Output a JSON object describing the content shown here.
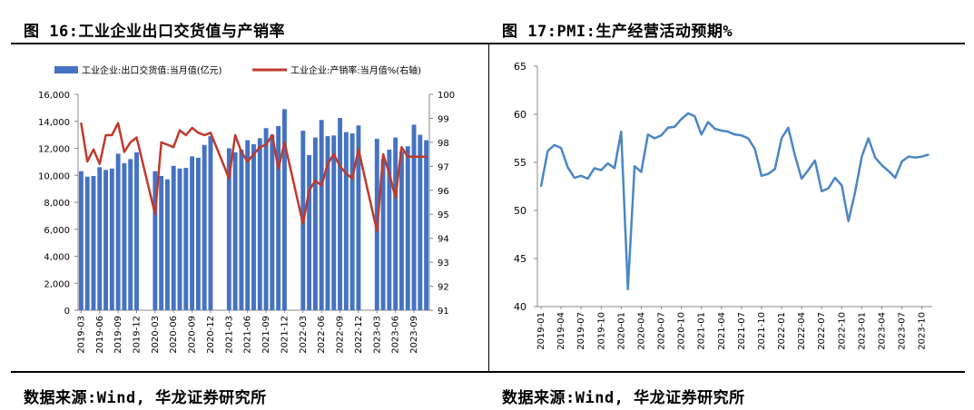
{
  "left_panel": {
    "title": "图 16:工业企业出口交货值与产销率",
    "source": "数据来源:Wind, 华龙证券研究所"
  },
  "right_panel": {
    "title": "图 17:PMI:生产经营活动预期%",
    "source": "数据来源:Wind, 华龙证券研究所"
  },
  "colors": {
    "bar": "#4472C4",
    "line_red": "#C0392B",
    "line_blue": "#4A86C5"
  },
  "chart_data": [
    {
      "type": "bar",
      "title": "工业企业出口交货值与产销率",
      "legend": [
        "工业企业:出口交货值:当月值(亿元)",
        "工业企业:产销率:当月值%(右轴)"
      ],
      "legend_position": "top",
      "x_tick_labels": [
        "2019-03",
        "2019-06",
        "2019-09",
        "2019-12",
        "2020-03",
        "2020-06",
        "2020-09",
        "2020-12",
        "2021-03",
        "2021-06",
        "2021-09",
        "2021-12",
        "2022-03",
        "2022-06",
        "2022-09",
        "2022-12",
        "2023-03",
        "2023-06",
        "2023-09"
      ],
      "y_left": {
        "ylim": [
          0,
          16000
        ],
        "ticks": [
          "0",
          "2,000",
          "4,000",
          "6,000",
          "8,000",
          "10,000",
          "12,000",
          "14,000",
          "16,000"
        ]
      },
      "y_right": {
        "ylim": [
          91,
          100
        ],
        "ticks": [
          "91",
          "92",
          "93",
          "94",
          "95",
          "96",
          "97",
          "98",
          "99",
          "100"
        ]
      },
      "categories": [
        "2019-03",
        "2019-04",
        "2019-05",
        "2019-06",
        "2019-07",
        "2019-08",
        "2019-09",
        "2019-10",
        "2019-11",
        "2019-12",
        "2020-01",
        "2020-02",
        "2020-03",
        "2020-04",
        "2020-05",
        "2020-06",
        "2020-07",
        "2020-08",
        "2020-09",
        "2020-10",
        "2020-11",
        "2020-12",
        "2021-01",
        "2021-02",
        "2021-03",
        "2021-04",
        "2021-05",
        "2021-06",
        "2021-07",
        "2021-08",
        "2021-09",
        "2021-10",
        "2021-11",
        "2021-12",
        "2022-01",
        "2022-02",
        "2022-03",
        "2022-04",
        "2022-05",
        "2022-06",
        "2022-07",
        "2022-08",
        "2022-09",
        "2022-10",
        "2022-11",
        "2022-12",
        "2023-01",
        "2023-02",
        "2023-03",
        "2023-04",
        "2023-05",
        "2023-06",
        "2023-07",
        "2023-08",
        "2023-09",
        "2023-10",
        "2023-11"
      ],
      "series": [
        {
          "name": "工业企业:出口交货值:当月值(亿元)",
          "axis": "left",
          "values": [
            10300,
            9900,
            9950,
            10600,
            10400,
            10500,
            11600,
            10900,
            11200,
            11700,
            null,
            null,
            10300,
            9950,
            9700,
            10700,
            10500,
            10550,
            11400,
            11300,
            12250,
            12900,
            null,
            null,
            12000,
            11700,
            11900,
            12600,
            12300,
            12750,
            13500,
            13000,
            13650,
            14900,
            null,
            null,
            13300,
            11500,
            12800,
            14100,
            12900,
            12950,
            14250,
            13200,
            13100,
            13700,
            null,
            null,
            12700,
            11200,
            11900,
            12800,
            11750,
            12150,
            13750,
            13000,
            12600
          ]
        },
        {
          "name": "工业企业:产销率:当月值%(右轴)",
          "axis": "right",
          "values": [
            98.8,
            97.2,
            97.7,
            97.1,
            98.3,
            98.3,
            98.8,
            97.6,
            98.0,
            98.2,
            null,
            null,
            95.0,
            98.0,
            97.9,
            97.8,
            98.5,
            98.3,
            98.6,
            98.4,
            98.3,
            98.4,
            null,
            null,
            96.5,
            98.3,
            97.6,
            97.2,
            97.5,
            97.8,
            97.9,
            98.3,
            96.9,
            98.0,
            null,
            null,
            94.6,
            96.0,
            96.4,
            96.2,
            97.1,
            97.5,
            97.0,
            96.7,
            96.5,
            97.7,
            null,
            null,
            94.3,
            97.5,
            96.7,
            95.7,
            97.8,
            97.4,
            97.4,
            97.4,
            97.4
          ]
        }
      ]
    },
    {
      "type": "line",
      "title": "PMI:生产经营活动预期%",
      "ylim": [
        40,
        65
      ],
      "y_ticks": [
        "40",
        "45",
        "50",
        "55",
        "60",
        "65"
      ],
      "x_tick_labels": [
        "2019-01",
        "2019-04",
        "2019-07",
        "2019-10",
        "2020-01",
        "2020-04",
        "2020-07",
        "2020-10",
        "2021-01",
        "2021-04",
        "2021-07",
        "2021-10",
        "2022-01",
        "2022-04",
        "2022-07",
        "2022-10",
        "2023-01",
        "2023-04",
        "2023-07",
        "2023-10"
      ],
      "x": [
        "2019-01",
        "2019-02",
        "2019-03",
        "2019-04",
        "2019-05",
        "2019-06",
        "2019-07",
        "2019-08",
        "2019-09",
        "2019-10",
        "2019-11",
        "2019-12",
        "2020-01",
        "2020-02",
        "2020-03",
        "2020-04",
        "2020-05",
        "2020-06",
        "2020-07",
        "2020-08",
        "2020-09",
        "2020-10",
        "2020-11",
        "2020-12",
        "2021-01",
        "2021-02",
        "2021-03",
        "2021-04",
        "2021-05",
        "2021-06",
        "2021-07",
        "2021-08",
        "2021-09",
        "2021-10",
        "2021-11",
        "2021-12",
        "2022-01",
        "2022-02",
        "2022-03",
        "2022-04",
        "2022-05",
        "2022-06",
        "2022-07",
        "2022-08",
        "2022-09",
        "2022-10",
        "2022-11",
        "2022-12",
        "2023-01",
        "2023-02",
        "2023-03",
        "2023-04",
        "2023-05",
        "2023-06",
        "2023-07",
        "2023-08",
        "2023-09",
        "2023-10",
        "2023-11"
      ],
      "series": [
        {
          "name": "PMI:生产经营活动预期%",
          "values": [
            52.5,
            56.2,
            56.8,
            56.5,
            54.5,
            53.4,
            53.6,
            53.3,
            54.4,
            54.2,
            54.9,
            54.4,
            58.2,
            41.8,
            54.6,
            54.0,
            57.9,
            57.5,
            57.8,
            58.6,
            58.7,
            59.5,
            60.1,
            59.8,
            57.9,
            59.2,
            58.5,
            58.3,
            58.2,
            57.9,
            57.8,
            57.5,
            56.4,
            53.6,
            53.8,
            54.3,
            57.5,
            58.6,
            55.7,
            53.3,
            54.2,
            55.2,
            52.0,
            52.3,
            53.4,
            52.6,
            48.9,
            51.9,
            55.6,
            57.5,
            55.5,
            54.7,
            54.1,
            53.4,
            55.1,
            55.6,
            55.5,
            55.6,
            55.8
          ]
        }
      ]
    }
  ]
}
